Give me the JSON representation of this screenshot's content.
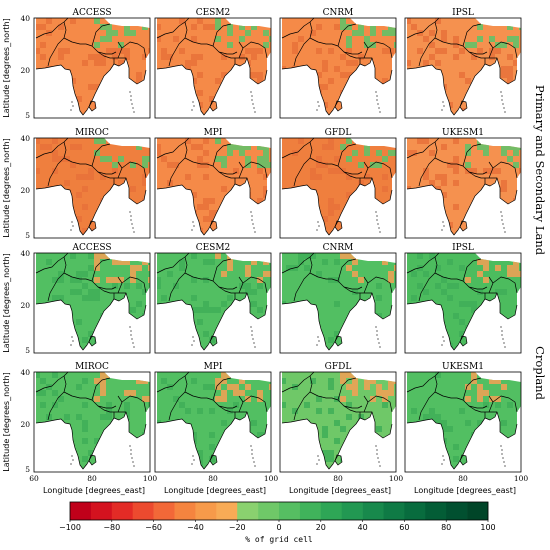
{
  "figure": {
    "group_labels": [
      "Primary and Secondary Land",
      "Cropland"
    ],
    "rows": [
      {
        "group": 0,
        "models": [
          "ACCESS",
          "CESM2",
          "CNRM",
          "IPSL"
        ],
        "fill": [
          "#f58a48",
          "#f58a48",
          "#f58a48",
          "#f5914f"
        ]
      },
      {
        "group": 0,
        "models": [
          "MIROC",
          "MPI",
          "GFDL",
          "UKESM1"
        ],
        "fill": [
          "#ef7f3e",
          "#f58a48",
          "#ef7f3e",
          "#f5914f"
        ]
      },
      {
        "group": 1,
        "models": [
          "ACCESS",
          "CESM2",
          "CNRM",
          "IPSL"
        ],
        "fill": [
          "#52bf62",
          "#52bf62",
          "#52bf62",
          "#4cbc5e"
        ]
      },
      {
        "group": 1,
        "models": [
          "MIROC",
          "MPI",
          "GFDL",
          "UKESM1"
        ],
        "fill": [
          "#55c062",
          "#52bf62",
          "#6fc868",
          "#52bf62"
        ]
      }
    ],
    "ylabel": "Latitude [degrees_north]",
    "xlabel": "Longitude [degrees_east]",
    "yticks": [
      "40",
      "20",
      "5"
    ],
    "xticks": [
      "60",
      "80",
      "100"
    ],
    "colorbar": {
      "ticks": [
        "−100",
        "−80",
        "−60",
        "−40",
        "−20",
        "0",
        "20",
        "40",
        "60",
        "80",
        "100"
      ],
      "label": "% of grid cell",
      "colors": [
        "#c0001a",
        "#d4121f",
        "#e32b26",
        "#ec4a2f",
        "#f26838",
        "#f5843f",
        "#f79a4a",
        "#f8ab56",
        "#8ad16f",
        "#6fc868",
        "#56be62",
        "#40b35b",
        "#2ea656",
        "#229852",
        "#18894c",
        "#0f7a45",
        "#086c3e",
        "#035d36",
        "#015030",
        "#004528"
      ]
    }
  }
}
